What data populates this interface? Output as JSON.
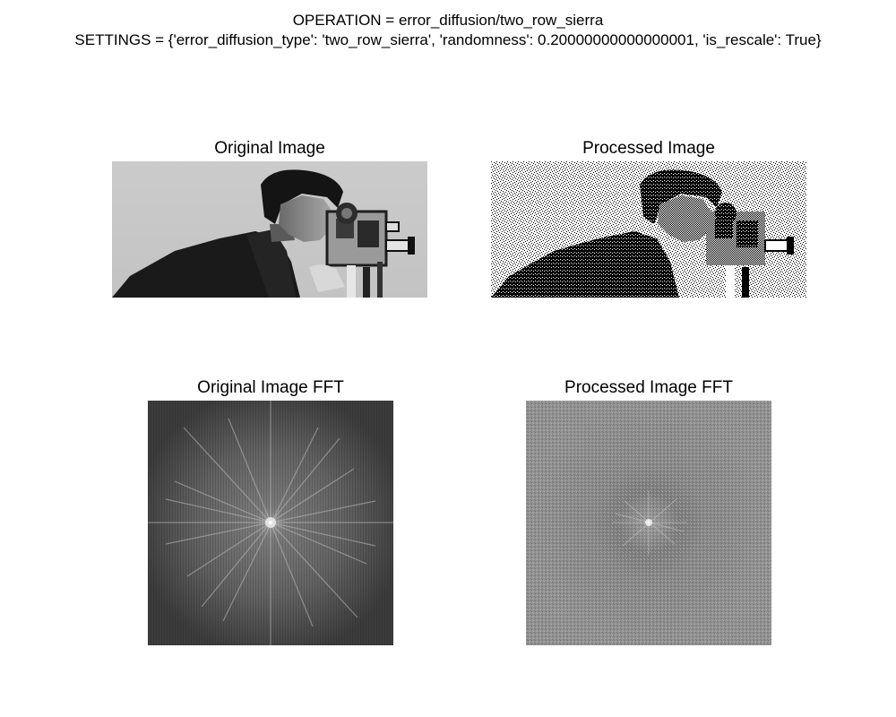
{
  "figure": {
    "operation_line": "OPERATION = error_diffusion/two_row_sierra",
    "settings_line": "SETTINGS = {'error_diffusion_type': 'two_row_sierra', 'randomness': 0.20000000000000001, 'is_rescale': True}"
  },
  "panels": {
    "original": {
      "title": "Original Image"
    },
    "processed": {
      "title": "Processed Image"
    },
    "original_fft": {
      "title": "Original Image FFT"
    },
    "processed_fft": {
      "title": "Processed Image FFT"
    }
  }
}
